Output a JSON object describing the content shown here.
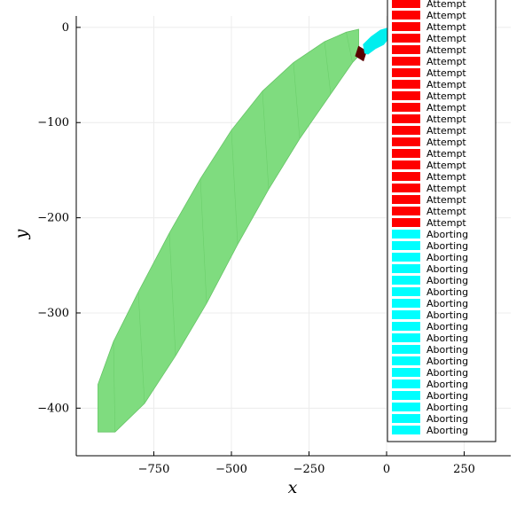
{
  "chart_data": {
    "type": "area",
    "title": "",
    "xlabel": "x",
    "ylabel": "y",
    "xlim": [
      -1000,
      400
    ],
    "ylim": [
      -450,
      12
    ],
    "xticks": [
      -750,
      -500,
      -250,
      0,
      250
    ],
    "xtick_labels": [
      "−750",
      "−500",
      "−250",
      "0",
      "250"
    ],
    "yticks": [
      0,
      -100,
      -200,
      -300,
      -400
    ],
    "ytick_labels": [
      "0",
      "−100",
      "−200",
      "−300",
      "−400"
    ],
    "grid": true,
    "legend_placement": "top-right",
    "series": [
      {
        "name": "Aborting",
        "color": "#7fdc7f",
        "role": "band",
        "upper": {
          "x": [
            -930,
            -880,
            -800,
            -700,
            -600,
            -500,
            -400,
            -300,
            -200,
            -130,
            -90
          ],
          "y": [
            -375,
            -330,
            -278,
            -216,
            -159,
            -108,
            -67,
            -37,
            -15,
            -5,
            -2
          ]
        },
        "lower": {
          "x": [
            -90,
            -110,
            -180,
            -280,
            -380,
            -480,
            -580,
            -680,
            -780,
            -875,
            -930
          ],
          "y": [
            -30,
            -37,
            -70,
            -117,
            -170,
            -228,
            -290,
            -345,
            -395,
            -425,
            -425
          ]
        }
      },
      {
        "name": "Attempt",
        "color": "#5a0000",
        "role": "segment",
        "x": [
          -100,
          -75,
          -65,
          -90
        ],
        "y": [
          -30,
          -35,
          -25,
          -20
        ]
      },
      {
        "name": "Aborting",
        "color": "#00eeee",
        "role": "fan",
        "x": [
          -75,
          -50,
          -20,
          0,
          0,
          -10,
          -35,
          -60,
          -70
        ],
        "y": [
          -18,
          -10,
          -3,
          -1,
          -14,
          -18,
          -22,
          -28,
          -27
        ]
      }
    ],
    "legend": {
      "entries": [
        {
          "label": "Attempt",
          "color": "#ff0000"
        },
        {
          "label": "Attempt",
          "color": "#ff0000"
        },
        {
          "label": "Attempt",
          "color": "#ff0000"
        },
        {
          "label": "Attempt",
          "color": "#ff0000"
        },
        {
          "label": "Attempt",
          "color": "#ff0000"
        },
        {
          "label": "Attempt",
          "color": "#ff0000"
        },
        {
          "label": "Attempt",
          "color": "#ff0000"
        },
        {
          "label": "Attempt",
          "color": "#ff0000"
        },
        {
          "label": "Attempt",
          "color": "#ff0000"
        },
        {
          "label": "Attempt",
          "color": "#ff0000"
        },
        {
          "label": "Attempt",
          "color": "#ff0000"
        },
        {
          "label": "Attempt",
          "color": "#ff0000"
        },
        {
          "label": "Attempt",
          "color": "#ff0000"
        },
        {
          "label": "Attempt",
          "color": "#ff0000"
        },
        {
          "label": "Attempt",
          "color": "#ff0000"
        },
        {
          "label": "Attempt",
          "color": "#ff0000"
        },
        {
          "label": "Attempt",
          "color": "#ff0000"
        },
        {
          "label": "Attempt",
          "color": "#ff0000"
        },
        {
          "label": "Attempt",
          "color": "#ff0000"
        },
        {
          "label": "Attempt",
          "color": "#ff0000"
        },
        {
          "label": "Aborting",
          "color": "#00ffff"
        },
        {
          "label": "Aborting",
          "color": "#00ffff"
        },
        {
          "label": "Aborting",
          "color": "#00ffff"
        },
        {
          "label": "Aborting",
          "color": "#00ffff"
        },
        {
          "label": "Aborting",
          "color": "#00ffff"
        },
        {
          "label": "Aborting",
          "color": "#00ffff"
        },
        {
          "label": "Aborting",
          "color": "#00ffff"
        },
        {
          "label": "Aborting",
          "color": "#00ffff"
        },
        {
          "label": "Aborting",
          "color": "#00ffff"
        },
        {
          "label": "Aborting",
          "color": "#00ffff"
        },
        {
          "label": "Aborting",
          "color": "#00ffff"
        },
        {
          "label": "Aborting",
          "color": "#00ffff"
        },
        {
          "label": "Aborting",
          "color": "#00ffff"
        },
        {
          "label": "Aborting",
          "color": "#00ffff"
        },
        {
          "label": "Aborting",
          "color": "#00ffff"
        },
        {
          "label": "Aborting",
          "color": "#00ffff"
        },
        {
          "label": "Aborting",
          "color": "#00ffff"
        },
        {
          "label": "Aborting",
          "color": "#00ffff"
        }
      ]
    }
  }
}
